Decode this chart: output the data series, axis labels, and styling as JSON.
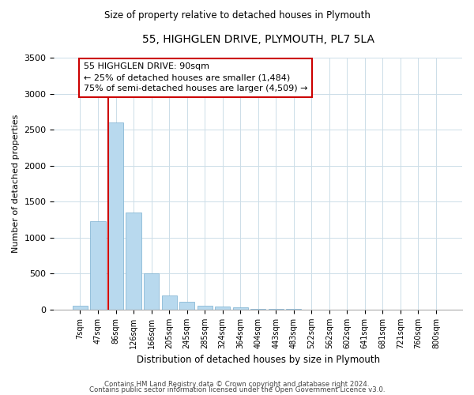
{
  "title": "55, HIGHGLEN DRIVE, PLYMOUTH, PL7 5LA",
  "subtitle": "Size of property relative to detached houses in Plymouth",
  "xlabel": "Distribution of detached houses by size in Plymouth",
  "ylabel": "Number of detached properties",
  "bar_labels": [
    "7sqm",
    "47sqm",
    "86sqm",
    "126sqm",
    "166sqm",
    "205sqm",
    "245sqm",
    "285sqm",
    "324sqm",
    "364sqm",
    "404sqm",
    "443sqm",
    "483sqm",
    "522sqm",
    "562sqm",
    "602sqm",
    "641sqm",
    "681sqm",
    "721sqm",
    "760sqm",
    "800sqm"
  ],
  "bar_heights": [
    50,
    1230,
    2600,
    1350,
    500,
    200,
    110,
    50,
    40,
    30,
    15,
    5,
    5,
    0,
    0,
    0,
    0,
    0,
    0,
    0,
    0
  ],
  "bar_color": "#b8d9ee",
  "bar_edge_color": "#7ab0d0",
  "highlight_line_color": "#cc0000",
  "ylim": [
    0,
    3500
  ],
  "yticks": [
    0,
    500,
    1000,
    1500,
    2000,
    2500,
    3000,
    3500
  ],
  "annotation_line1": "55 HIGHGLEN DRIVE: 90sqm",
  "annotation_line2": "← 25% of detached houses are smaller (1,484)",
  "annotation_line3": "75% of semi-detached houses are larger (4,509) →",
  "annotation_box_edge": "#cc0000",
  "footnote1": "Contains HM Land Registry data © Crown copyright and database right 2024.",
  "footnote2": "Contains public sector information licensed under the Open Government Licence v3.0."
}
